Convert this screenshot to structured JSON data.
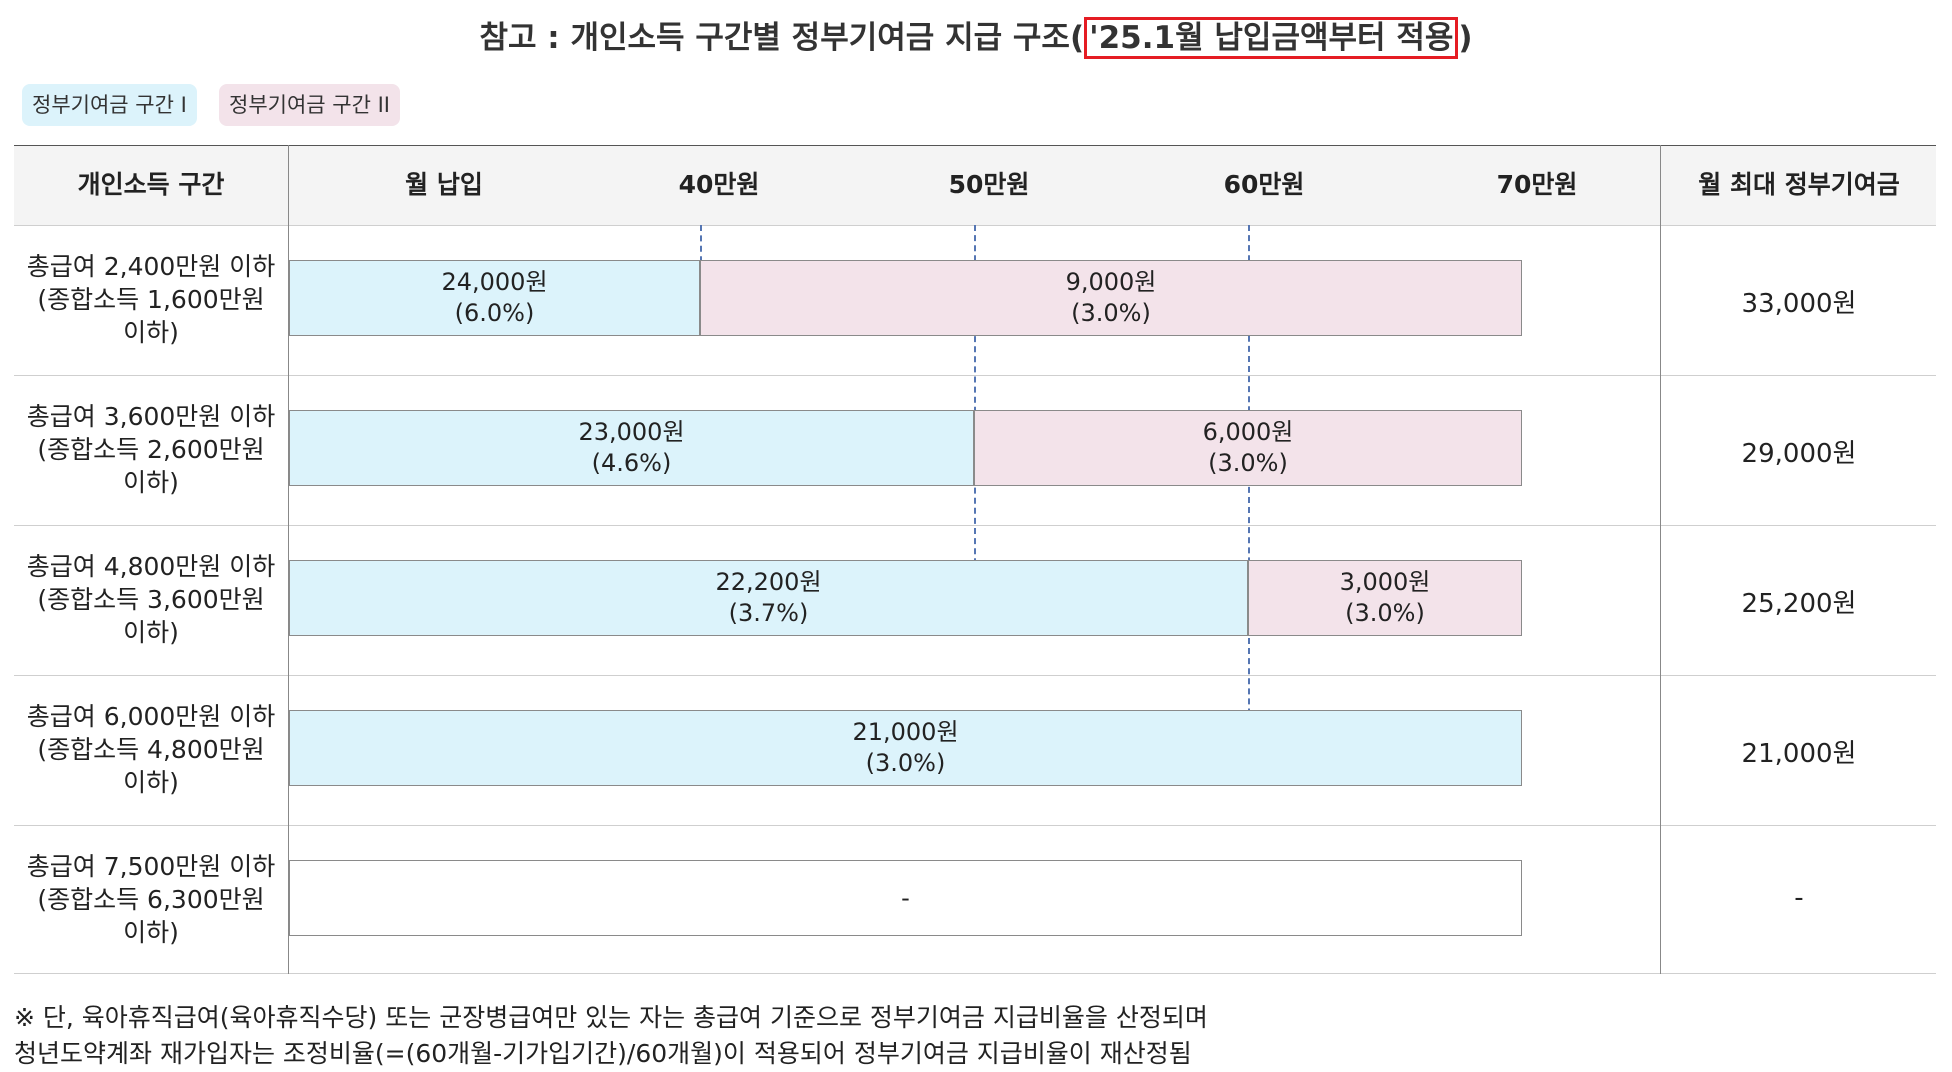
{
  "title": {
    "prefix": "참고 : 개인소득 구간별 정부기여금 지급 구조(",
    "highlight": "'25.1월 납입금액부터 적용",
    "suffix": ")"
  },
  "legend": {
    "tier1": "정부기여금 구간 I",
    "tier2": "정부기여금 구간 II"
  },
  "header": {
    "col_income": "개인소득 구간",
    "col_monthly": "월 납입",
    "tick_40": "40만원",
    "tick_50": "50만원",
    "tick_60": "60만원",
    "tick_70": "70만원",
    "col_max": "월 최대 정부기여금"
  },
  "rows": [
    {
      "label": [
        "총급여 2,400만원 이하",
        "(종합소득 1,600만원",
        "이하)"
      ],
      "tier1": {
        "amount": "24,000원",
        "rate": "(6.0%)"
      },
      "tier2": {
        "amount": "9,000원",
        "rate": "(3.0%)"
      },
      "max": "33,000원"
    },
    {
      "label": [
        "총급여 3,600만원 이하",
        "(종합소득 2,600만원",
        "이하)"
      ],
      "tier1": {
        "amount": "23,000원",
        "rate": "(4.6%)"
      },
      "tier2": {
        "amount": "6,000원",
        "rate": "(3.0%)"
      },
      "max": "29,000원"
    },
    {
      "label": [
        "총급여 4,800만원 이하",
        "(종합소득 3,600만원",
        "이하)"
      ],
      "tier1": {
        "amount": "22,200원",
        "rate": "(3.7%)"
      },
      "tier2": {
        "amount": "3,000원",
        "rate": "(3.0%)"
      },
      "max": "25,200원"
    },
    {
      "label": [
        "총급여 6,000만원 이하",
        "(종합소득 4,800만원",
        "이하)"
      ],
      "tier1": {
        "amount": "21,000원",
        "rate": "(3.0%)"
      },
      "max": "21,000원"
    },
    {
      "label": [
        "총급여 7,500만원 이하",
        "(종합소득 6,300만원",
        "이하)"
      ],
      "none": "-",
      "max": "-"
    }
  ],
  "notes": {
    "line1": "※ 단, 육아휴직급여(육아휴직수당) 또는 군장병급여만 있는 자는 총급여 기준으로 정부기여금 지급비율을 산정되며",
    "line2": "청년도약계좌 재가입자는 조정비율(=(60개월-기가입기간)/60개월)이 적용되어 정부기여금 지급비율이 재산정됨"
  },
  "colors": {
    "tier1": "#dcf3fb",
    "tier2": "#f3e3ea",
    "highlight_border": "#e51c23"
  }
}
